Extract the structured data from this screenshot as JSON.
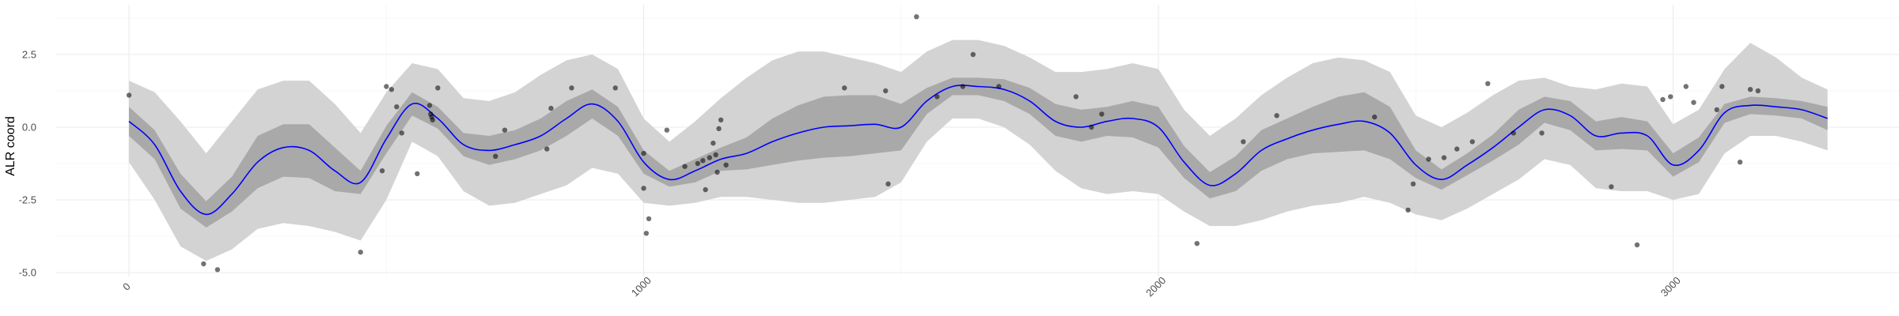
{
  "chart_data": {
    "type": "line",
    "title": "",
    "xlabel": "",
    "ylabel": "ALR coord",
    "xlim": [
      -60,
      3420
    ],
    "ylim": [
      -5.1,
      3.9
    ],
    "x_ticks": [
      0,
      1000,
      2000,
      3000
    ],
    "x_tick_labels": [
      "0",
      "1000",
      "2000",
      "3000"
    ],
    "y_ticks": [
      -5.0,
      -2.5,
      0.0,
      2.5
    ],
    "y_tick_labels": [
      "-5.0",
      "-2.5",
      "0.0",
      "2.5"
    ],
    "grid": true,
    "legend": "none",
    "colors": {
      "mean_line": "#0000ff",
      "inner_band": "#a9a9a9",
      "outer_band": "#d3d3d3",
      "points": "#000000",
      "grid": "#ebebeb"
    },
    "mean_curve": {
      "x": [
        0,
        50,
        100,
        150,
        200,
        250,
        300,
        350,
        400,
        450,
        500,
        550,
        600,
        650,
        700,
        750,
        800,
        850,
        900,
        950,
        1000,
        1050,
        1100,
        1150,
        1200,
        1250,
        1300,
        1350,
        1400,
        1450,
        1500,
        1550,
        1600,
        1650,
        1700,
        1750,
        1800,
        1850,
        1900,
        1950,
        2000,
        2050,
        2100,
        2150,
        2200,
        2250,
        2300,
        2350,
        2400,
        2450,
        2500,
        2550,
        2600,
        2650,
        2700,
        2750,
        2800,
        2850,
        2900,
        2950,
        3000,
        3050,
        3100,
        3150,
        3200,
        3250,
        3300
      ],
      "y": [
        0.2,
        -0.6,
        -2.2,
        -3.0,
        -2.3,
        -1.2,
        -0.7,
        -0.8,
        -1.5,
        -1.9,
        -0.4,
        0.8,
        0.3,
        -0.6,
        -0.8,
        -0.6,
        -0.3,
        0.3,
        0.8,
        0.2,
        -1.2,
        -1.8,
        -1.5,
        -1.1,
        -0.9,
        -0.5,
        -0.2,
        0.0,
        0.05,
        0.1,
        0.0,
        0.9,
        1.4,
        1.4,
        1.3,
        0.9,
        0.2,
        0.0,
        0.2,
        0.3,
        0.0,
        -1.2,
        -2.0,
        -1.6,
        -0.8,
        -0.4,
        -0.1,
        0.1,
        0.2,
        -0.2,
        -1.3,
        -1.8,
        -1.3,
        -0.7,
        0.0,
        0.6,
        0.4,
        -0.3,
        -0.2,
        -0.3,
        -1.3,
        -0.8,
        0.5,
        0.75,
        0.7,
        0.6,
        0.3
      ]
    },
    "inner_band": {
      "lower": [
        -0.3,
        -1.1,
        -2.8,
        -3.45,
        -2.9,
        -2.1,
        -1.7,
        -1.75,
        -2.2,
        -2.3,
        -0.9,
        0.4,
        -0.05,
        -1.0,
        -1.3,
        -1.1,
        -0.8,
        -0.3,
        0.3,
        -0.3,
        -1.6,
        -2.05,
        -1.9,
        -1.5,
        -1.45,
        -1.3,
        -1.15,
        -1.05,
        -1.0,
        -0.9,
        -0.8,
        0.45,
        1.1,
        1.1,
        0.9,
        0.45,
        -0.3,
        -0.5,
        -0.3,
        -0.35,
        -0.7,
        -1.75,
        -2.45,
        -2.2,
        -1.5,
        -1.1,
        -0.9,
        -0.85,
        -0.8,
        -1.1,
        -1.75,
        -2.15,
        -1.65,
        -1.15,
        -0.6,
        0.15,
        -0.1,
        -0.8,
        -0.75,
        -0.8,
        -1.7,
        -1.2,
        0.15,
        0.45,
        0.4,
        0.3,
        -0.1
      ],
      "upper": [
        0.7,
        -0.1,
        -1.6,
        -2.55,
        -1.7,
        -0.3,
        0.1,
        0.1,
        -0.7,
        -1.5,
        0.05,
        1.2,
        0.7,
        -0.2,
        -0.3,
        -0.1,
        0.3,
        0.9,
        1.3,
        0.7,
        -0.8,
        -1.5,
        -1.1,
        -0.7,
        -0.35,
        0.3,
        0.75,
        1.05,
        1.1,
        1.1,
        0.8,
        1.35,
        1.7,
        1.7,
        1.65,
        1.35,
        0.8,
        0.6,
        0.7,
        0.9,
        0.7,
        -0.65,
        -1.55,
        -1.0,
        -0.1,
        0.3,
        0.7,
        1.05,
        1.2,
        0.7,
        -0.8,
        -1.45,
        -0.9,
        -0.25,
        0.6,
        1.05,
        0.9,
        0.2,
        0.35,
        0.2,
        -0.9,
        -0.35,
        0.8,
        1.05,
        1.0,
        0.9,
        0.7
      ]
    },
    "outer_band": {
      "lower": [
        -1.2,
        -2.5,
        -4.1,
        -4.6,
        -4.2,
        -3.5,
        -3.3,
        -3.4,
        -3.6,
        -3.9,
        -2.5,
        -0.5,
        -1.0,
        -2.2,
        -2.7,
        -2.6,
        -2.3,
        -2.0,
        -1.4,
        -1.6,
        -2.6,
        -2.7,
        -2.6,
        -2.4,
        -2.4,
        -2.5,
        -2.6,
        -2.6,
        -2.5,
        -2.4,
        -1.9,
        -0.5,
        0.3,
        0.3,
        0.0,
        -0.6,
        -1.5,
        -2.1,
        -2.3,
        -2.2,
        -2.3,
        -2.9,
        -3.4,
        -3.4,
        -3.2,
        -2.9,
        -2.7,
        -2.6,
        -2.4,
        -2.6,
        -3.0,
        -3.2,
        -2.8,
        -2.3,
        -1.8,
        -1.1,
        -1.3,
        -2.1,
        -2.2,
        -2.2,
        -2.5,
        -2.3,
        -0.9,
        -0.3,
        -0.3,
        -0.5,
        -0.8
      ],
      "upper": [
        1.6,
        1.2,
        0.2,
        -0.9,
        0.2,
        1.3,
        1.6,
        1.6,
        0.8,
        -0.2,
        1.2,
        2.2,
        2.0,
        1.0,
        0.9,
        1.2,
        1.8,
        2.3,
        2.5,
        2.0,
        0.3,
        -0.5,
        0.2,
        1.0,
        1.7,
        2.3,
        2.6,
        2.6,
        2.4,
        2.2,
        1.9,
        2.6,
        3.0,
        3.0,
        2.8,
        2.4,
        1.9,
        1.9,
        2.0,
        2.2,
        2.0,
        0.6,
        -0.3,
        0.3,
        1.1,
        1.7,
        2.2,
        2.4,
        2.3,
        1.9,
        0.4,
        0.0,
        0.5,
        1.1,
        1.6,
        1.7,
        1.4,
        1.3,
        1.5,
        1.4,
        0.1,
        0.6,
        2.0,
        2.9,
        2.4,
        1.7,
        1.3
      ]
    },
    "points": {
      "x": [
        0,
        145,
        172,
        450,
        492,
        500,
        510,
        520,
        530,
        560,
        584,
        586,
        588,
        590,
        600,
        712,
        730,
        812,
        820,
        860,
        945,
        1000,
        1000,
        1005,
        1010,
        1045,
        1080,
        1105,
        1115,
        1120,
        1128,
        1135,
        1140,
        1143,
        1146,
        1150,
        1160,
        1390,
        1470,
        1475,
        1530,
        1570,
        1620,
        1640,
        1690,
        1840,
        1870,
        1890,
        2075,
        2165,
        2230,
        2420,
        2485,
        2495,
        2525,
        2555,
        2580,
        2610,
        2640,
        2690,
        2745,
        2880,
        2930,
        2980,
        2995,
        3025,
        3040,
        3085,
        3095,
        3130,
        3150,
        3165
      ],
      "y": [
        1.1,
        -4.7,
        -4.9,
        -4.3,
        -1.5,
        1.4,
        1.3,
        0.7,
        -0.2,
        -1.6,
        0.75,
        0.45,
        0.35,
        0.25,
        1.35,
        -1.0,
        -0.1,
        -0.75,
        0.65,
        1.35,
        1.35,
        -0.9,
        -2.1,
        -3.65,
        -3.15,
        -0.1,
        -1.35,
        -1.25,
        -1.15,
        -2.15,
        -1.05,
        -0.55,
        -0.95,
        -1.55,
        -0.05,
        0.25,
        -1.3,
        1.35,
        1.25,
        -1.95,
        3.8,
        1.05,
        1.4,
        2.5,
        1.4,
        1.05,
        0.0,
        0.45,
        -4.0,
        -0.5,
        0.4,
        0.35,
        -2.85,
        -1.95,
        -1.1,
        -1.05,
        -0.75,
        -0.5,
        1.5,
        -0.2,
        -0.2,
        -2.05,
        -4.05,
        0.95,
        1.05,
        1.4,
        0.85,
        0.6,
        1.4,
        -1.2,
        1.3,
        1.25
      ]
    }
  }
}
